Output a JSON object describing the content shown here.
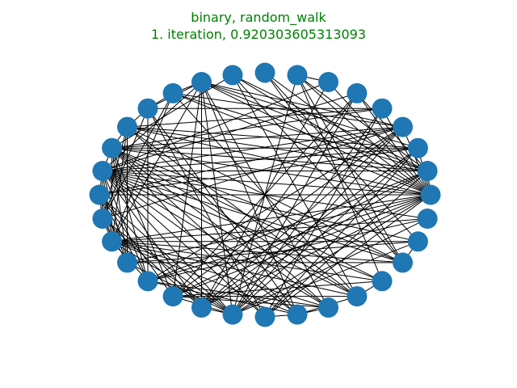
{
  "title": {
    "line1": "binary, random_walk",
    "line2": "1. iteration, 0.920303605313093",
    "color": "#008000"
  },
  "graph": {
    "layout": "circular",
    "node_count": 32,
    "node_color": "#1f77b4",
    "edge_color": "#000000",
    "edges": [
      [
        0,
        1
      ],
      [
        0,
        2
      ],
      [
        0,
        3
      ],
      [
        0,
        4
      ],
      [
        0,
        5
      ],
      [
        0,
        6
      ],
      [
        0,
        7
      ],
      [
        0,
        8
      ],
      [
        0,
        9
      ],
      [
        0,
        10
      ],
      [
        0,
        11
      ],
      [
        0,
        13
      ],
      [
        0,
        14
      ],
      [
        0,
        15
      ],
      [
        0,
        16
      ],
      [
        0,
        18
      ],
      [
        0,
        19
      ],
      [
        0,
        20
      ],
      [
        0,
        21
      ],
      [
        0,
        22
      ],
      [
        0,
        23
      ],
      [
        0,
        24
      ],
      [
        1,
        5
      ],
      [
        1,
        7
      ],
      [
        1,
        9
      ],
      [
        1,
        10
      ],
      [
        1,
        11
      ],
      [
        1,
        13
      ],
      [
        1,
        14
      ],
      [
        1,
        15
      ],
      [
        1,
        20
      ],
      [
        1,
        21
      ],
      [
        1,
        22
      ],
      [
        1,
        24
      ],
      [
        2,
        10
      ],
      [
        2,
        13
      ],
      [
        2,
        14
      ],
      [
        2,
        15
      ],
      [
        2,
        16
      ],
      [
        2,
        22
      ],
      [
        2,
        23
      ],
      [
        2,
        24
      ],
      [
        3,
        10
      ],
      [
        3,
        11
      ],
      [
        3,
        14
      ],
      [
        3,
        15
      ],
      [
        3,
        16
      ],
      [
        3,
        17
      ],
      [
        3,
        20
      ],
      [
        3,
        21
      ],
      [
        3,
        22
      ],
      [
        3,
        23
      ],
      [
        4,
        12
      ],
      [
        4,
        13
      ],
      [
        4,
        14
      ],
      [
        4,
        23
      ],
      [
        4,
        24
      ],
      [
        5,
        15
      ],
      [
        5,
        21
      ],
      [
        5,
        22
      ],
      [
        5,
        23
      ],
      [
        6,
        7
      ],
      [
        6,
        15
      ],
      [
        6,
        22
      ],
      [
        7,
        23
      ],
      [
        7,
        28
      ],
      [
        7,
        29
      ],
      [
        8,
        29
      ],
      [
        8,
        30
      ],
      [
        9,
        14
      ],
      [
        9,
        27
      ],
      [
        9,
        29
      ],
      [
        10,
        11
      ],
      [
        10,
        12
      ],
      [
        10,
        15
      ],
      [
        10,
        18
      ],
      [
        10,
        21
      ],
      [
        10,
        22
      ],
      [
        10,
        23
      ],
      [
        10,
        25
      ],
      [
        10,
        26
      ],
      [
        11,
        12
      ],
      [
        11,
        17
      ],
      [
        11,
        18
      ],
      [
        11,
        27
      ],
      [
        12,
        13
      ],
      [
        12,
        17
      ],
      [
        12,
        20
      ],
      [
        12,
        24
      ],
      [
        12,
        25
      ],
      [
        13,
        14
      ],
      [
        13,
        17
      ],
      [
        13,
        18
      ],
      [
        13,
        19
      ],
      [
        13,
        26
      ],
      [
        13,
        27
      ],
      [
        13,
        29
      ],
      [
        14,
        15
      ],
      [
        14,
        18
      ],
      [
        14,
        19
      ],
      [
        14,
        20
      ],
      [
        14,
        21
      ],
      [
        14,
        24
      ],
      [
        14,
        25
      ],
      [
        14,
        26
      ],
      [
        14,
        27
      ],
      [
        14,
        28
      ],
      [
        14,
        29
      ],
      [
        15,
        16
      ],
      [
        15,
        17
      ],
      [
        15,
        18
      ],
      [
        15,
        19
      ],
      [
        15,
        20
      ],
      [
        15,
        22
      ],
      [
        15,
        23
      ],
      [
        15,
        24
      ],
      [
        15,
        25
      ],
      [
        15,
        26
      ],
      [
        15,
        27
      ],
      [
        15,
        28
      ],
      [
        15,
        29
      ],
      [
        15,
        30
      ],
      [
        15,
        31
      ],
      [
        16,
        17
      ],
      [
        16,
        18
      ],
      [
        16,
        19
      ],
      [
        16,
        20
      ],
      [
        16,
        21
      ],
      [
        16,
        22
      ],
      [
        16,
        23
      ],
      [
        17,
        18
      ],
      [
        17,
        19
      ],
      [
        17,
        22
      ],
      [
        17,
        23
      ],
      [
        18,
        20
      ],
      [
        18,
        23
      ],
      [
        18,
        25
      ],
      [
        18,
        26
      ],
      [
        18,
        27
      ],
      [
        18,
        28
      ],
      [
        18,
        29
      ],
      [
        18,
        30
      ],
      [
        18,
        31
      ],
      [
        19,
        23
      ],
      [
        19,
        29
      ],
      [
        19,
        30
      ],
      [
        20,
        25
      ],
      [
        20,
        26
      ],
      [
        20,
        31
      ],
      [
        21,
        23
      ],
      [
        21,
        26
      ],
      [
        21,
        27
      ],
      [
        21,
        28
      ],
      [
        22,
        23
      ],
      [
        23,
        30
      ],
      [
        23,
        31
      ],
      [
        24,
        25
      ],
      [
        25,
        26
      ],
      [
        25,
        27
      ],
      [
        27,
        28
      ],
      [
        29,
        30
      ]
    ]
  }
}
